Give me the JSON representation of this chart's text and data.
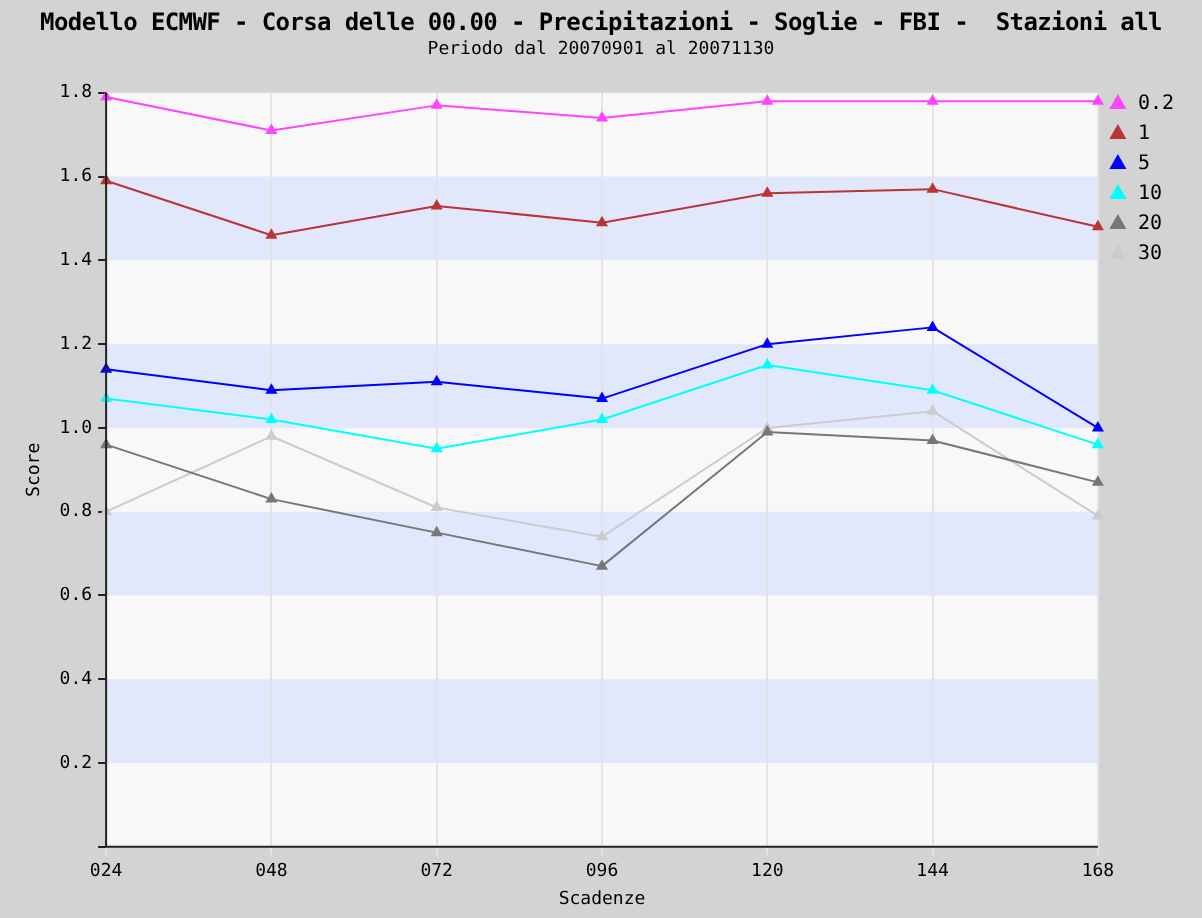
{
  "chart_data": {
    "type": "line",
    "title": "Modello ECMWF - Corsa delle 00.00 - Precipitazioni - Soglie - FBI -  Stazioni all",
    "subtitle": "Periodo dal 20070901 al 20071130",
    "xlabel": "Scadenze",
    "ylabel": "Score",
    "categories": [
      "024",
      "048",
      "072",
      "096",
      "120",
      "144",
      "168"
    ],
    "series": [
      {
        "name": "0.2",
        "color": "#ff44ff",
        "values": [
          1.79,
          1.71,
          1.77,
          1.74,
          1.78,
          1.78,
          1.78
        ]
      },
      {
        "name": "1",
        "color": "#bb3333",
        "values": [
          1.59,
          1.46,
          1.53,
          1.49,
          1.56,
          1.57,
          1.48
        ]
      },
      {
        "name": "5",
        "color": "#0000ff",
        "values": [
          1.14,
          1.09,
          1.11,
          1.07,
          1.2,
          1.24,
          1.0
        ]
      },
      {
        "name": "10",
        "color": "#00ffff",
        "values": [
          1.07,
          1.02,
          0.95,
          1.02,
          1.15,
          1.09,
          0.96
        ]
      },
      {
        "name": "20",
        "color": "#777777",
        "values": [
          0.96,
          0.83,
          0.75,
          0.67,
          0.99,
          0.97,
          0.87
        ]
      },
      {
        "name": "30",
        "color": "#cccccc",
        "values": [
          0.8,
          0.98,
          0.81,
          0.74,
          1.0,
          1.04,
          0.79
        ]
      }
    ],
    "ylim": [
      0,
      1.8
    ],
    "yticks": [
      {
        "value": 0,
        "label": null
      },
      0.2,
      0.4,
      0.6,
      0.8,
      {
        "value": 1.0,
        "label": "1.0"
      },
      1.2,
      1.4,
      1.6,
      1.8
    ],
    "grid": true,
    "legend": "top right",
    "marker": "triangle",
    "line_style": "solid"
  }
}
